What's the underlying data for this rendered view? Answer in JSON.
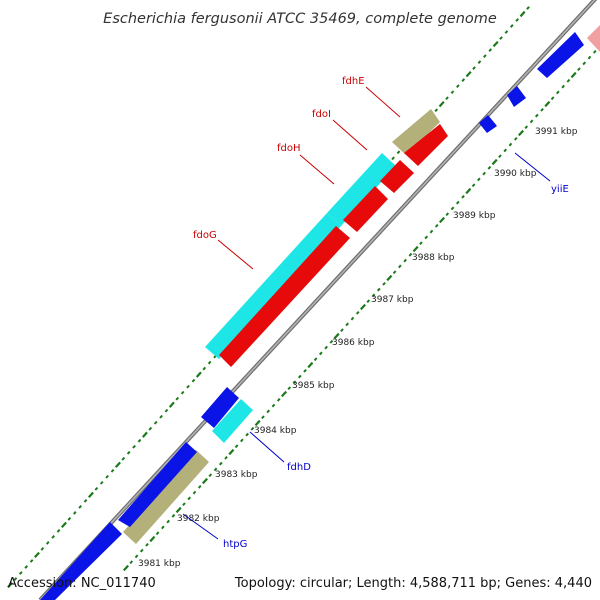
{
  "title": "Escherichia fergusonii ATCC 35469, complete genome",
  "footer": {
    "accession": "Accession: NC_011740",
    "summary": "Topology: circular; Length: 4,588,711 bp; Genes: 4,440"
  },
  "colors": {
    "backbone": "#8c8c8c",
    "tick": "#1a7a1a",
    "blue_gene": "#0a14e6",
    "cyan_gene": "#1ee6e6",
    "red_gene": "#e60a0a",
    "khaki_gene": "#b4b07a",
    "pink_gene": "#f0a0a0",
    "label_red": "#cc0000",
    "label_blue": "#0000cc"
  },
  "ticks": [
    {
      "label": "3981 kbp"
    },
    {
      "label": "3982 kbp"
    },
    {
      "label": "3983 kbp"
    },
    {
      "label": "3984 kbp"
    },
    {
      "label": "3985 kbp"
    },
    {
      "label": "3986 kbp"
    },
    {
      "label": "3987 kbp"
    },
    {
      "label": "3988 kbp"
    },
    {
      "label": "3989 kbp"
    },
    {
      "label": "3990 kbp"
    },
    {
      "label": "3991 kbp"
    }
  ],
  "gene_labels": [
    {
      "text": "fdhE",
      "color": "label_red"
    },
    {
      "text": "fdoI",
      "color": "label_red"
    },
    {
      "text": "fdoH",
      "color": "label_red"
    },
    {
      "text": "fdoG",
      "color": "label_red"
    },
    {
      "text": "yiiE",
      "color": "label_blue"
    },
    {
      "text": "fdhD",
      "color": "label_blue"
    },
    {
      "text": "htpG",
      "color": "label_blue"
    }
  ]
}
